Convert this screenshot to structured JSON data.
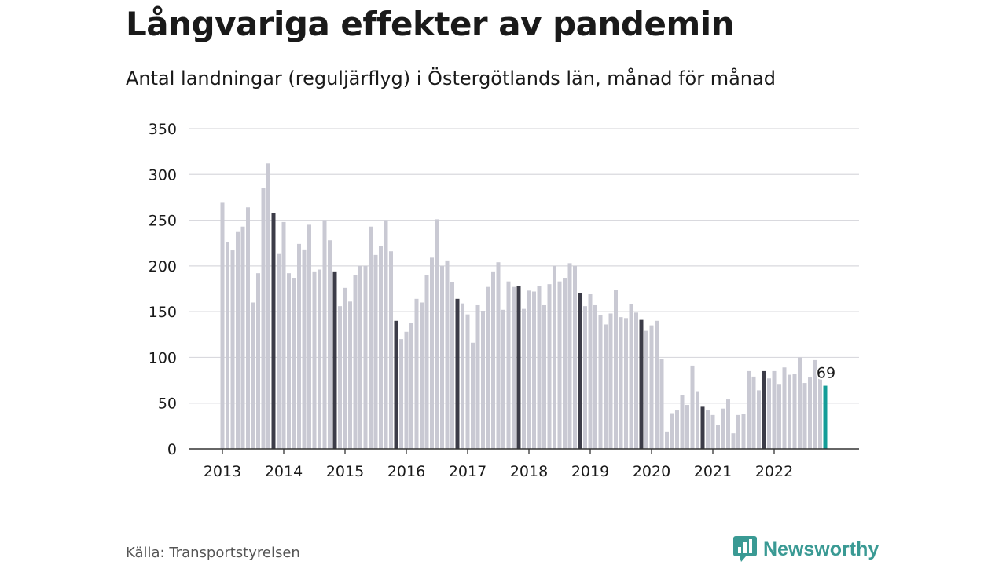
{
  "title": "Långvariga effekter av pandemin",
  "subtitle": "Antal landningar (reguljärflyg) i Östergötlands län, månad för månad",
  "source": "Källa: Transportstyrelsen",
  "brand": {
    "name": "Newsworthy",
    "icon": "newsworthy-logo-icon",
    "color": "#3a9a94"
  },
  "colors": {
    "bar": "#c9c9d3",
    "highlight": "#3c3c48",
    "latest": "#139c97",
    "grid": "#d9d9de",
    "axis": "#333333"
  },
  "chart_data": {
    "type": "bar",
    "title": "Långvariga effekter av pandemin",
    "subtitle": "Antal landningar (reguljärflyg) i Östergötlands län, månad för månad",
    "xlabel": "",
    "ylabel": "",
    "ylim": [
      0,
      350
    ],
    "yticks": [
      0,
      50,
      100,
      150,
      200,
      250,
      300,
      350
    ],
    "xticks": [
      "2013",
      "2014",
      "2015",
      "2016",
      "2017",
      "2018",
      "2019",
      "2020",
      "2021",
      "2022"
    ],
    "grid": true,
    "start": "2013-01",
    "highlight_month": "november",
    "latest_label": "69",
    "values": [
      269,
      226,
      217,
      237,
      243,
      264,
      160,
      192,
      285,
      312,
      258,
      213,
      248,
      192,
      187,
      224,
      218,
      245,
      194,
      196,
      250,
      228,
      194,
      156,
      176,
      161,
      190,
      200,
      200,
      243,
      212,
      222,
      250,
      216,
      140,
      120,
      128,
      138,
      164,
      160,
      190,
      209,
      251,
      200,
      206,
      182,
      164,
      159,
      147,
      116,
      157,
      151,
      177,
      194,
      204,
      152,
      183,
      177,
      178,
      153,
      173,
      172,
      178,
      157,
      180,
      200,
      183,
      187,
      203,
      200,
      170,
      156,
      169,
      157,
      146,
      136,
      148,
      174,
      144,
      143,
      158,
      149,
      141,
      129,
      135,
      140,
      98,
      19,
      39,
      42,
      59,
      48,
      91,
      63,
      46,
      42,
      37,
      26,
      44,
      54,
      17,
      37,
      38,
      85,
      79,
      64,
      85,
      77,
      85,
      71,
      89,
      81,
      82,
      100,
      72,
      78,
      97,
      77,
      69
    ]
  }
}
